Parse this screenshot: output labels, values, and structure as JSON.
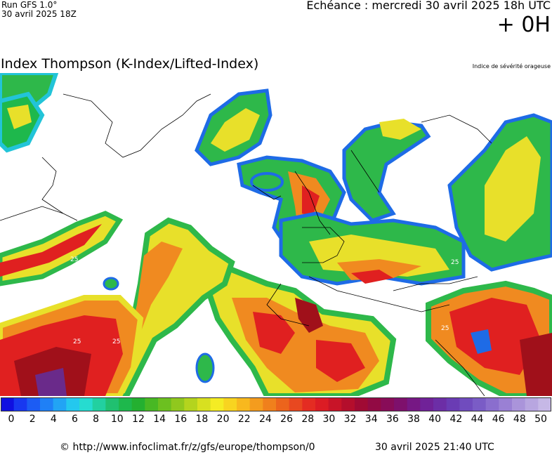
{
  "header": {
    "run_label": "Run GFS 1.0°",
    "run_date": "30 avril 2025 18Z",
    "echeance": "Echéance : mercredi 30 avril 2025 18h UTC",
    "offset": "+ 0H",
    "title": "Index Thompson (K-Index/Lifted-Index)",
    "subtitle": "Indice de sévérité orageuse"
  },
  "map": {
    "contour_labels": [
      "25",
      "25",
      "25",
      "25",
      "25"
    ],
    "colors": {
      "blue": "#1e6be6",
      "cyan": "#22c4d8",
      "green": "#2eb84a",
      "yellow": "#e8e02a",
      "orange": "#f08a20",
      "red": "#e02020",
      "darkred": "#a0101a",
      "purple": "#6a2a8a"
    }
  },
  "legend": {
    "ticks": [
      "0",
      "2",
      "4",
      "6",
      "8",
      "10",
      "12",
      "14",
      "16",
      "18",
      "20",
      "22",
      "24",
      "26",
      "28",
      "30",
      "32",
      "34",
      "36",
      "38",
      "40",
      "42",
      "44",
      "46",
      "48",
      "50"
    ],
    "colors": [
      "#1010e0",
      "#1838f0",
      "#1c5cf4",
      "#1f80f6",
      "#22a4f4",
      "#24c8ee",
      "#26dcd0",
      "#22d0a0",
      "#20c070",
      "#1eb84c",
      "#24b030",
      "#48b824",
      "#6cc020",
      "#90c81e",
      "#b4d41e",
      "#d8e020",
      "#f4ec24",
      "#f8d420",
      "#f8b81e",
      "#f49c1e",
      "#f0801c",
      "#ec641c",
      "#e84820",
      "#e42c22",
      "#dc1c24",
      "#c81428",
      "#b40e2c",
      "#a00a34",
      "#920a44",
      "#880c58",
      "#7e106c",
      "#761884",
      "#702298",
      "#6c2ea6",
      "#6a3cb4",
      "#704cbe",
      "#7a5cc6",
      "#8a6ece",
      "#9a80d4",
      "#aa94da",
      "#b8a6e0",
      "#c6b8e6"
    ]
  },
  "footer": {
    "copyright": "© http://www.infoclimat.fr/z/gfs/europe/thompson/0",
    "timestamp": "30 avril 2025 21:40 UTC"
  }
}
